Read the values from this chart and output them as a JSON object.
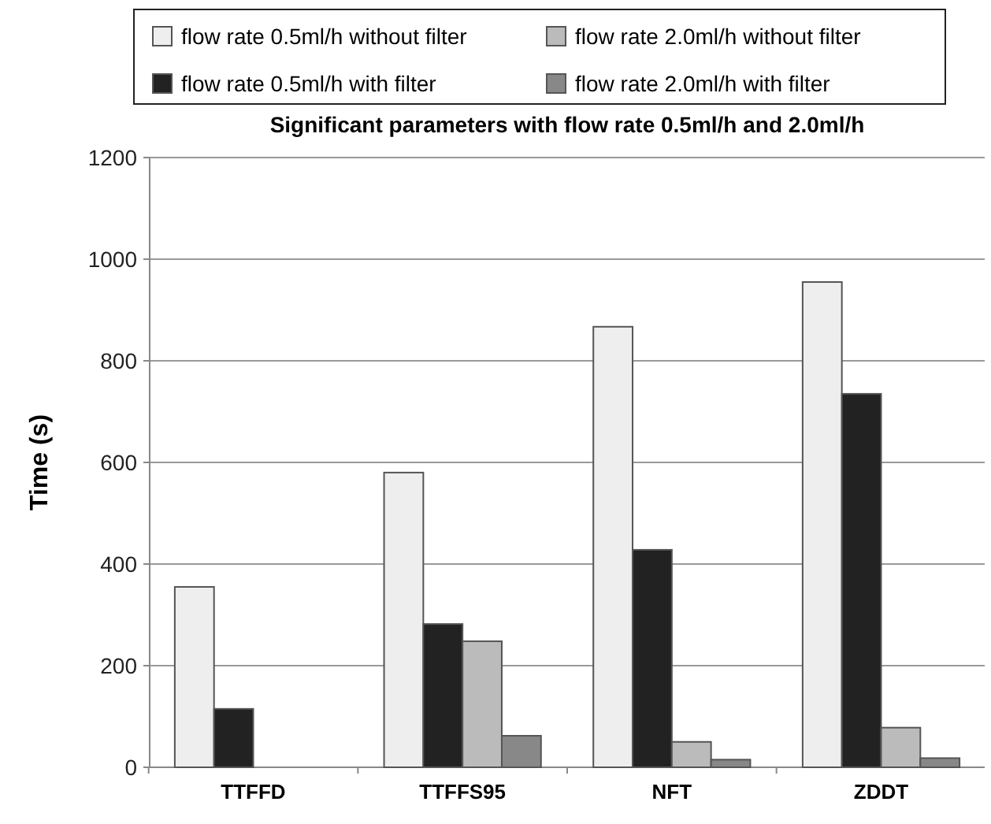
{
  "chart_data": {
    "type": "bar",
    "title": "Significant parameters with flow rate 0.5ml/h and 2.0ml/h",
    "ylabel": "Time (s)",
    "categories": [
      "TTFFD",
      "TTFFS95",
      "NFT",
      "ZDDT"
    ],
    "series": [
      {
        "name": "flow rate 0.5ml/h without filter",
        "color": "#eeeeee",
        "values": [
          355,
          580,
          867,
          955
        ]
      },
      {
        "name": "flow rate 0.5ml/h with filter",
        "color": "#222222",
        "values": [
          115,
          282,
          428,
          735
        ]
      },
      {
        "name": "flow rate 2.0ml/h without filter",
        "color": "#bbbbbb",
        "values": [
          null,
          248,
          50,
          78
        ]
      },
      {
        "name": "flow rate 2.0ml/h with filter",
        "color": "#888888",
        "values": [
          null,
          62,
          15,
          18
        ]
      }
    ],
    "ylim": [
      0,
      1200
    ],
    "yticks": [
      0,
      200,
      400,
      600,
      800,
      1000,
      1200
    ],
    "grid": "y",
    "legend": "top"
  }
}
